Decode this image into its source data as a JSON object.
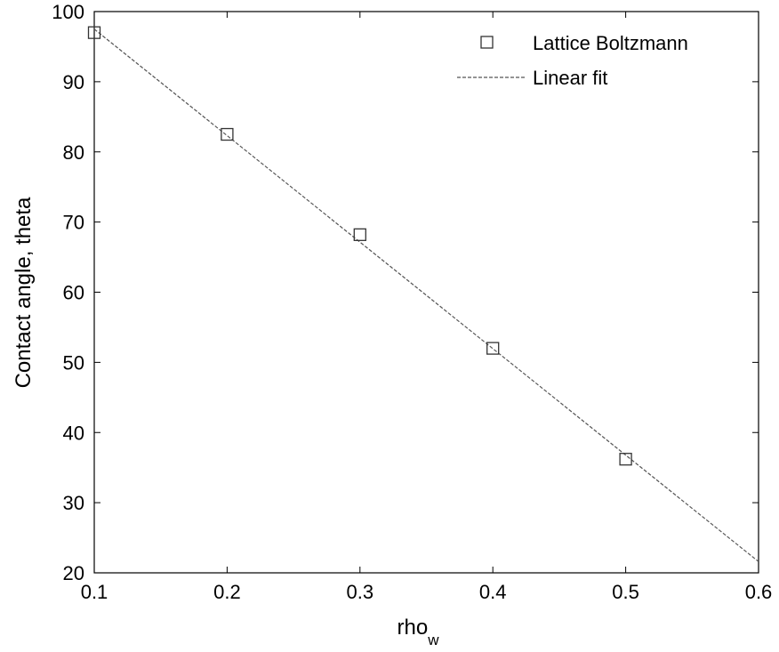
{
  "chart_data": {
    "type": "scatter",
    "title": "",
    "xlabel": "rho",
    "xlabel_sub": "w",
    "ylabel": "Contact angle, theta",
    "xlim": [
      0.1,
      0.6
    ],
    "ylim": [
      20,
      100
    ],
    "xticks": [
      "0.1",
      "0.2",
      "0.3",
      "0.4",
      "0.5",
      "0.6"
    ],
    "yticks": [
      "20",
      "30",
      "40",
      "50",
      "60",
      "70",
      "80",
      "90",
      "100"
    ],
    "grid": false,
    "legend_position": "top-right",
    "series": [
      {
        "name": "Lattice Boltzmann",
        "marker": "square",
        "color": "#333333",
        "x": [
          0.1,
          0.2,
          0.3,
          0.4,
          0.5
        ],
        "y": [
          97.0,
          82.5,
          68.2,
          52.0,
          36.2
        ]
      },
      {
        "name": "Linear fit",
        "style": "dashed-line",
        "color": "#555555",
        "x": [
          0.1,
          0.6
        ],
        "y": [
          97.5,
          21.6
        ]
      }
    ]
  }
}
